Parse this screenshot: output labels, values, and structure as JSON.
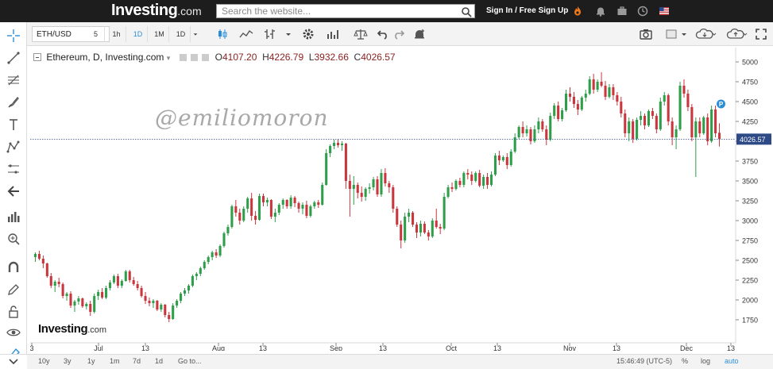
{
  "topnav": {
    "logo_brand": "Investing",
    "logo_tld": ".com",
    "search_placeholder": "Search the website...",
    "signin_label": "Sign In / Free Sign Up",
    "icons": [
      "search-icon",
      "fire-icon",
      "bell-icon",
      "briefcase-icon",
      "clock-icon",
      "flag-us-icon"
    ]
  },
  "toolbar": {
    "symbol": "ETH/USD",
    "timeframes": [
      {
        "label": "5",
        "active": false
      },
      {
        "label": "1h",
        "active": false
      },
      {
        "label": "1D",
        "active": true
      },
      {
        "label": "1M",
        "active": false
      },
      {
        "label": "1D",
        "active": false
      }
    ],
    "icons": [
      "candles-icon",
      "area-chart-icon",
      "bars-icon",
      "settings-icon",
      "indicators-icon",
      "scale-icon",
      "undo-icon",
      "redo-icon",
      "alert-icon",
      "camera-icon",
      "color-icon",
      "cloud-save-icon",
      "cloud-load-icon",
      "fullscreen-icon"
    ]
  },
  "legend": {
    "title": "Ethereum, D, Investing.com",
    "open_label": "O",
    "open": "4107.20",
    "high_label": "H",
    "high": "4226.79",
    "low_label": "L",
    "low": "3932.66",
    "close_label": "C",
    "close": "4026.57"
  },
  "watermark": "@emiliomoron",
  "brand_watermark": {
    "brand": "Investing",
    "tld": ".com"
  },
  "price_badge": "4026.57",
  "p_marker": "P",
  "chart_data": {
    "type": "candlestick",
    "title": "Ethereum, D, Investing.com",
    "y_ticks": [
      1750,
      2000,
      2250,
      2500,
      2750,
      3000,
      3250,
      3500,
      3750,
      4000,
      4250,
      4500,
      4750,
      5000
    ],
    "ylim": [
      1500,
      5100
    ],
    "x_ticks": [
      "3",
      "Jul",
      "13",
      "Aug",
      "13",
      "Sep",
      "13",
      "Oct",
      "13",
      "Nov",
      "13",
      "Dec",
      "13"
    ],
    "last_price": 4026.57,
    "candles": [
      [
        2540,
        2600,
        2480,
        2580
      ],
      [
        2580,
        2620,
        2500,
        2520
      ],
      [
        2520,
        2560,
        2400,
        2460
      ],
      [
        2460,
        2470,
        2280,
        2300
      ],
      [
        2300,
        2340,
        2150,
        2180
      ],
      [
        2180,
        2250,
        2100,
        2230
      ],
      [
        2230,
        2280,
        2160,
        2200
      ],
      [
        2200,
        2220,
        2020,
        2050
      ],
      [
        2050,
        2100,
        1990,
        2080
      ],
      [
        2080,
        2110,
        1900,
        1930
      ],
      [
        1930,
        2000,
        1850,
        1980
      ],
      [
        1980,
        2050,
        1940,
        2020
      ],
      [
        2020,
        2030,
        1900,
        1920
      ],
      [
        1920,
        1970,
        1880,
        1950
      ],
      [
        1950,
        1990,
        1800,
        1850
      ],
      [
        1850,
        2080,
        1830,
        2050
      ],
      [
        2050,
        2130,
        2000,
        2100
      ],
      [
        2100,
        2150,
        2010,
        2030
      ],
      [
        2030,
        2180,
        2010,
        2150
      ],
      [
        2150,
        2250,
        2120,
        2220
      ],
      [
        2220,
        2320,
        2200,
        2300
      ],
      [
        2300,
        2330,
        2150,
        2180
      ],
      [
        2180,
        2260,
        2150,
        2240
      ],
      [
        2240,
        2380,
        2230,
        2360
      ],
      [
        2360,
        2380,
        2220,
        2250
      ],
      [
        2250,
        2290,
        2180,
        2200
      ],
      [
        2200,
        2240,
        2120,
        2150
      ],
      [
        2150,
        2180,
        2030,
        2050
      ],
      [
        2050,
        2100,
        1950,
        1990
      ],
      [
        1990,
        2030,
        1920,
        1960
      ],
      [
        1960,
        2010,
        1900,
        1990
      ],
      [
        1990,
        2000,
        1860,
        1880
      ],
      [
        1880,
        1960,
        1850,
        1940
      ],
      [
        1940,
        1950,
        1780,
        1810
      ],
      [
        1810,
        1850,
        1720,
        1760
      ],
      [
        1760,
        1960,
        1750,
        1930
      ],
      [
        1930,
        2010,
        1900,
        1990
      ],
      [
        1990,
        2100,
        1960,
        2080
      ],
      [
        2080,
        2150,
        2050,
        2120
      ],
      [
        2120,
        2200,
        2080,
        2180
      ],
      [
        2180,
        2320,
        2160,
        2300
      ],
      [
        2300,
        2350,
        2250,
        2330
      ],
      [
        2330,
        2420,
        2300,
        2400
      ],
      [
        2400,
        2500,
        2380,
        2480
      ],
      [
        2480,
        2560,
        2450,
        2540
      ],
      [
        2540,
        2620,
        2500,
        2600
      ],
      [
        2600,
        2640,
        2530,
        2560
      ],
      [
        2560,
        2700,
        2540,
        2680
      ],
      [
        2680,
        2860,
        2660,
        2840
      ],
      [
        2840,
        2950,
        2810,
        2920
      ],
      [
        2920,
        3200,
        2900,
        3180
      ],
      [
        3180,
        3260,
        3050,
        3100
      ],
      [
        3100,
        3150,
        2950,
        3000
      ],
      [
        3000,
        3180,
        2980,
        3150
      ],
      [
        3150,
        3300,
        3100,
        3280
      ],
      [
        3280,
        3350,
        3000,
        3060
      ],
      [
        3060,
        3120,
        2950,
        3010
      ],
      [
        3010,
        3340,
        3000,
        3310
      ],
      [
        3310,
        3340,
        3180,
        3230
      ],
      [
        3230,
        3290,
        3180,
        3260
      ],
      [
        3260,
        3270,
        3020,
        3050
      ],
      [
        3050,
        3150,
        2980,
        3100
      ],
      [
        3100,
        3220,
        3070,
        3200
      ],
      [
        3200,
        3280,
        3150,
        3260
      ],
      [
        3260,
        3270,
        3150,
        3180
      ],
      [
        3180,
        3320,
        3150,
        3290
      ],
      [
        3290,
        3310,
        3170,
        3220
      ],
      [
        3220,
        3240,
        3100,
        3150
      ],
      [
        3150,
        3230,
        3080,
        3200
      ],
      [
        3200,
        3250,
        3030,
        3060
      ],
      [
        3060,
        3200,
        3040,
        3180
      ],
      [
        3180,
        3250,
        3150,
        3230
      ],
      [
        3230,
        3260,
        3160,
        3200
      ],
      [
        3200,
        3480,
        3190,
        3450
      ],
      [
        3450,
        3900,
        3440,
        3850
      ],
      [
        3850,
        3960,
        3800,
        3940
      ],
      [
        3940,
        4020,
        3900,
        3980
      ],
      [
        3980,
        4030,
        3920,
        3950
      ],
      [
        3950,
        4000,
        3880,
        3970
      ],
      [
        3970,
        3980,
        3400,
        3500
      ],
      [
        3500,
        3580,
        3050,
        3400
      ],
      [
        3400,
        3560,
        3200,
        3450
      ],
      [
        3450,
        3480,
        3280,
        3350
      ],
      [
        3350,
        3430,
        3240,
        3300
      ],
      [
        3300,
        3420,
        3250,
        3400
      ],
      [
        3400,
        3470,
        3340,
        3420
      ],
      [
        3420,
        3550,
        3380,
        3520
      ],
      [
        3520,
        3560,
        3300,
        3330
      ],
      [
        3330,
        3650,
        3300,
        3600
      ],
      [
        3600,
        3660,
        3430,
        3470
      ],
      [
        3470,
        3500,
        3350,
        3420
      ],
      [
        3420,
        3450,
        3100,
        3150
      ],
      [
        3150,
        3180,
        2920,
        2950
      ],
      [
        2950,
        3000,
        2650,
        2750
      ],
      [
        2750,
        3100,
        2720,
        3050
      ],
      [
        3050,
        3150,
        2980,
        3100
      ],
      [
        3100,
        3120,
        2920,
        2950
      ],
      [
        2950,
        2980,
        2780,
        2850
      ],
      [
        2850,
        3000,
        2800,
        2960
      ],
      [
        2960,
        2990,
        2830,
        2850
      ],
      [
        2850,
        2880,
        2750,
        2800
      ],
      [
        2800,
        3030,
        2780,
        3000
      ],
      [
        3000,
        3150,
        2900,
        2920
      ],
      [
        2920,
        2960,
        2830,
        2900
      ],
      [
        2900,
        3350,
        2880,
        3300
      ],
      [
        3300,
        3450,
        3280,
        3420
      ],
      [
        3420,
        3480,
        3360,
        3400
      ],
      [
        3400,
        3520,
        3380,
        3500
      ],
      [
        3500,
        3540,
        3420,
        3450
      ],
      [
        3450,
        3620,
        3420,
        3600
      ],
      [
        3600,
        3650,
        3520,
        3580
      ],
      [
        3580,
        3620,
        3450,
        3500
      ],
      [
        3500,
        3620,
        3480,
        3600
      ],
      [
        3600,
        3640,
        3420,
        3440
      ],
      [
        3440,
        3580,
        3400,
        3550
      ],
      [
        3550,
        3600,
        3400,
        3450
      ],
      [
        3450,
        3620,
        3430,
        3580
      ],
      [
        3580,
        3850,
        3560,
        3820
      ],
      [
        3820,
        3880,
        3700,
        3760
      ],
      [
        3760,
        3820,
        3740,
        3800
      ],
      [
        3800,
        3850,
        3650,
        3700
      ],
      [
        3700,
        3900,
        3680,
        3870
      ],
      [
        3870,
        4100,
        3850,
        4050
      ],
      [
        4050,
        4200,
        4030,
        4180
      ],
      [
        4180,
        4250,
        4050,
        4100
      ],
      [
        4100,
        4200,
        4060,
        4150
      ],
      [
        4150,
        4180,
        3960,
        4000
      ],
      [
        4000,
        4200,
        3980,
        4150
      ],
      [
        4150,
        4300,
        4100,
        4250
      ],
      [
        4250,
        4280,
        4120,
        4150
      ],
      [
        4150,
        4200,
        3950,
        4020
      ],
      [
        4020,
        4360,
        4000,
        4320
      ],
      [
        4320,
        4480,
        4280,
        4450
      ],
      [
        4450,
        4500,
        4250,
        4280
      ],
      [
        4280,
        4420,
        4250,
        4390
      ],
      [
        4390,
        4650,
        4370,
        4600
      ],
      [
        4600,
        4680,
        4500,
        4560
      ],
      [
        4560,
        4620,
        4420,
        4470
      ],
      [
        4470,
        4520,
        4330,
        4400
      ],
      [
        4400,
        4570,
        4380,
        4550
      ],
      [
        4550,
        4650,
        4500,
        4600
      ],
      [
        4600,
        4820,
        4580,
        4780
      ],
      [
        4780,
        4850,
        4600,
        4650
      ],
      [
        4650,
        4780,
        4620,
        4750
      ],
      [
        4750,
        4870,
        4680,
        4700
      ],
      [
        4700,
        4760,
        4520,
        4560
      ],
      [
        4560,
        4720,
        4540,
        4680
      ],
      [
        4680,
        4720,
        4520,
        4580
      ],
      [
        4580,
        4620,
        4450,
        4500
      ],
      [
        4500,
        4560,
        4300,
        4350
      ],
      [
        4350,
        4400,
        4050,
        4100
      ],
      [
        4100,
        4300,
        4000,
        4250
      ],
      [
        4250,
        4280,
        3980,
        4030
      ],
      [
        4030,
        4300,
        4010,
        4270
      ],
      [
        4270,
        4380,
        4200,
        4320
      ],
      [
        4320,
        4350,
        4150,
        4200
      ],
      [
        4200,
        4400,
        4180,
        4380
      ],
      [
        4380,
        4420,
        4280,
        4320
      ],
      [
        4320,
        4350,
        4100,
        4150
      ],
      [
        4150,
        4550,
        4130,
        4500
      ],
      [
        4500,
        4620,
        4450,
        4580
      ],
      [
        4580,
        4600,
        4200,
        4250
      ],
      [
        4250,
        4300,
        3950,
        4050
      ],
      [
        4050,
        4200,
        3900,
        4150
      ],
      [
        4150,
        4750,
        4130,
        4700
      ],
      [
        4700,
        4780,
        4550,
        4600
      ],
      [
        4600,
        4650,
        4380,
        4430
      ],
      [
        4430,
        4470,
        4000,
        4050
      ],
      [
        4050,
        4300,
        3550,
        4250
      ],
      [
        4250,
        4300,
        4050,
        4100
      ],
      [
        4100,
        4320,
        4080,
        4300
      ],
      [
        4300,
        4350,
        3950,
        4000
      ],
      [
        4000,
        4450,
        3980,
        4400
      ],
      [
        4400,
        4450,
        4050,
        4100
      ],
      [
        4107.2,
        4226.79,
        3932.66,
        4026.57
      ]
    ]
  },
  "bottombar": {
    "ranges": [
      "10y",
      "3y",
      "1y",
      "1m",
      "7d",
      "1d"
    ],
    "goto_label": "Go to...",
    "time": "15:46:49 (UTC-5)",
    "percent_label": "%",
    "log_label": "log",
    "auto_label": "auto"
  },
  "colors": {
    "up": "#2e9e4a",
    "down": "#c9363e",
    "axis_text": "#333333",
    "price_line": "#2e4a8a",
    "accent": "#2b8fd8",
    "topbar": "#1d1d1d"
  }
}
